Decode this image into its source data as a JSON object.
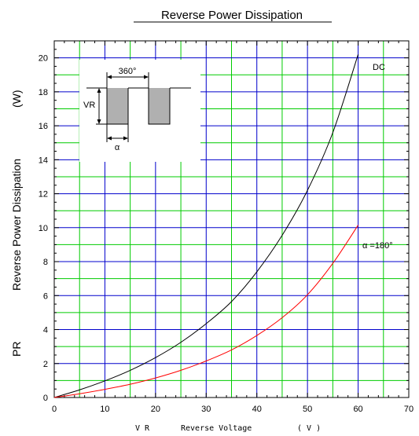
{
  "chart_data": {
    "type": "line",
    "title": "Reverse Power Dissipation",
    "xlabel": {
      "prefix": "V R",
      "text": "Reverse Voltage",
      "unit": "( V )"
    },
    "ylabel": {
      "prefix": "PR",
      "text": "Reverse Power Dissipation",
      "unit": "(W)"
    },
    "xlim": [
      0,
      70
    ],
    "ylim": [
      0,
      21
    ],
    "x_ticks": [
      0,
      10,
      20,
      30,
      40,
      50,
      60,
      70
    ],
    "y_ticks": [
      0,
      2,
      4,
      6,
      8,
      10,
      12,
      14,
      16,
      18,
      20
    ],
    "grid": true,
    "grid_major_color": "#0000cc",
    "grid_minor_color": "#00cc00",
    "series": [
      {
        "name": "DC",
        "color": "#000000",
        "x": [
          0,
          5,
          10,
          15,
          20,
          25,
          30,
          35,
          40,
          45,
          50,
          55,
          60
        ],
        "y": [
          0,
          0.45,
          0.98,
          1.6,
          2.35,
          3.25,
          4.35,
          5.65,
          7.4,
          9.55,
          12.2,
          15.6,
          20.2
        ]
      },
      {
        "name": "α =180°",
        "color": "#ff0000",
        "x": [
          0,
          5,
          10,
          15,
          20,
          25,
          30,
          35,
          40,
          45,
          50,
          55,
          60
        ],
        "y": [
          0,
          0.22,
          0.48,
          0.78,
          1.15,
          1.6,
          2.15,
          2.8,
          3.65,
          4.7,
          6.05,
          7.9,
          10.15
        ]
      }
    ],
    "inset": {
      "period_label": "360°",
      "amplitude_label": "VR",
      "width_label": "α"
    }
  }
}
